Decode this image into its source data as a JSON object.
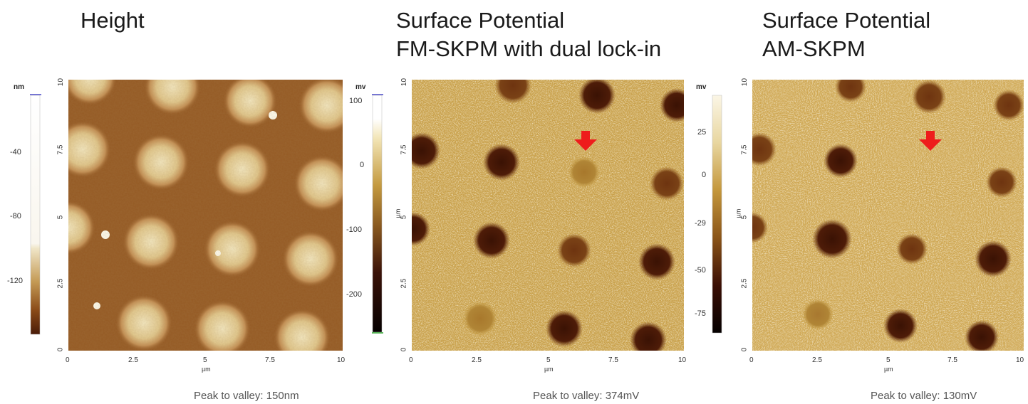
{
  "panels": [
    {
      "id": "height",
      "title_lines": [
        "Height"
      ],
      "colorbar": {
        "unit": "nm",
        "ticks": [
          "-40",
          "-80",
          "-120"
        ]
      },
      "axis": {
        "x_ticks": [
          "0",
          "2.5",
          "5",
          "7.5",
          "10"
        ],
        "y_ticks": [
          "0",
          "2.5",
          "5",
          "7.5",
          "10"
        ],
        "x_unit": "µm"
      },
      "footer": "Peak to valley: 150nm"
    },
    {
      "id": "fm-skpm",
      "title_lines": [
        "Surface Potential",
        "FM-SKPM with dual lock-in"
      ],
      "colorbar": {
        "unit": "mv",
        "ticks": [
          "100",
          "0",
          "-100",
          "-200"
        ]
      },
      "axis": {
        "x_ticks": [
          "0",
          "2.5",
          "5",
          "7.5",
          "10"
        ],
        "y_ticks": [
          "0",
          "2.5",
          "5",
          "7.5",
          "10"
        ],
        "x_unit": "µm",
        "y_unit": "µm"
      },
      "footer": "Peak to valley: 374mV"
    },
    {
      "id": "am-skpm",
      "title_lines": [
        "Surface Potential",
        "AM-SKPM"
      ],
      "colorbar": {
        "unit": "mv",
        "ticks": [
          "25",
          "0",
          "-29",
          "-50",
          "-75"
        ]
      },
      "axis": {
        "x_ticks": [
          "0",
          "2.5",
          "5",
          "7.5",
          "10"
        ],
        "y_ticks": [
          "0",
          "2.5",
          "5",
          "7.5",
          "10"
        ],
        "x_unit": "µm",
        "y_unit": "µm"
      },
      "footer": "Peak to valley: 130mV"
    }
  ],
  "colors": {
    "arrow": "#ee1c1c",
    "text": "#1a1a1a"
  }
}
